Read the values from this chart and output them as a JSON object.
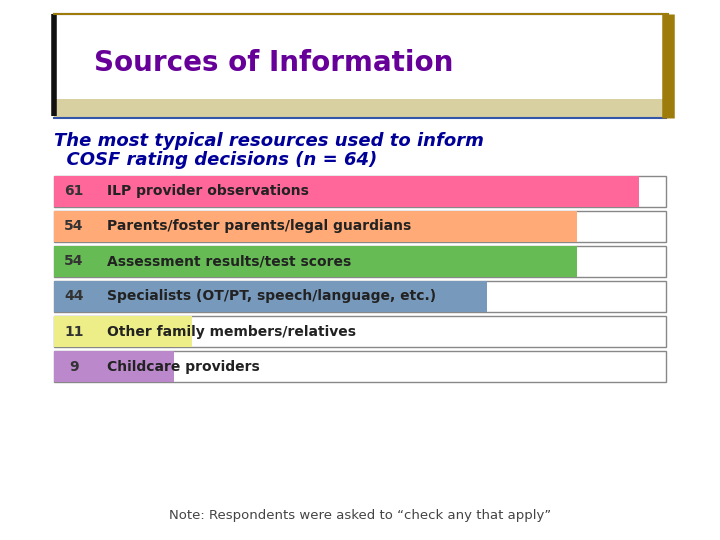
{
  "title": "Sources of Information",
  "subtitle_line1": "The most typical resources used to inform",
  "subtitle_line2": "  COSF rating decisions (n = 64)",
  "title_color": "#660099",
  "subtitle_color": "#000099",
  "background_color": "#FFFFFF",
  "rows": [
    {
      "value": 61,
      "label": "ILP provider observations",
      "bar_color": "#FF6699",
      "pct": 0.953
    },
    {
      "value": 54,
      "label": "Parents/foster parents/legal guardians",
      "bar_color": "#FFAA77",
      "pct": 0.844
    },
    {
      "value": 54,
      "label": "Assessment results/test scores",
      "bar_color": "#66BB55",
      "pct": 0.844
    },
    {
      "value": 44,
      "label": "Specialists (OT/PT, speech/language, etc.)",
      "bar_color": "#7799BB",
      "pct": 0.688
    },
    {
      "value": 11,
      "label": "Other family members/relatives",
      "bar_color": "#EEEE88",
      "pct": 0.172
    },
    {
      "value": 9,
      "label": "Childcare providers",
      "bar_color": "#BB88CC",
      "pct": 0.141
    }
  ],
  "note": "Note: Respondents were asked to “check any that apply”",
  "note_color": "#444444",
  "border_left_color": "#111111",
  "border_top_color": "#9E7C0C",
  "num_color": "#333333",
  "label_color": "#222222"
}
